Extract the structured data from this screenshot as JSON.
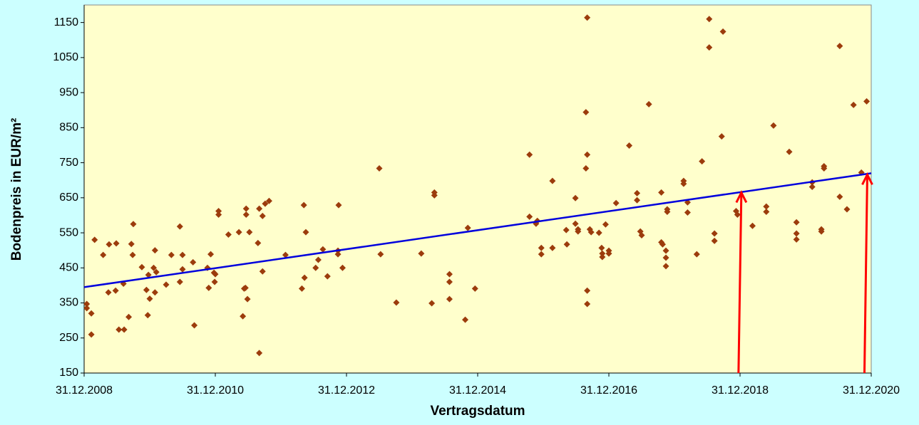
{
  "chart_data": {
    "type": "scatter",
    "x_label": "Vertragsdatum",
    "y_label": "Bodenpreis in EUR/m²",
    "xlim": [
      2009,
      2021
    ],
    "xticks": [
      {
        "value": 2009,
        "label": "31.12.2008"
      },
      {
        "value": 2011,
        "label": "31.12.2010"
      },
      {
        "value": 2013,
        "label": "31.12.2012"
      },
      {
        "value": 2015,
        "label": "31.12.2014"
      },
      {
        "value": 2017,
        "label": "31.12.2016"
      },
      {
        "value": 2019,
        "label": "31.12.2018"
      },
      {
        "value": 2021,
        "label": "31.12.2020"
      }
    ],
    "ylim": [
      150,
      1200
    ],
    "yticks": [
      150,
      250,
      350,
      450,
      550,
      650,
      750,
      850,
      950,
      1050,
      1150
    ],
    "series": [
      {
        "color": "#9c3c0c",
        "x": [
          2009.04,
          2009.04,
          2009.11,
          2009.11,
          2009.16,
          2009.29,
          2009.37,
          2009.38,
          2009.48,
          2009.49,
          2009.53,
          2009.61,
          2009.6,
          2009.68,
          2009.72,
          2009.75,
          2009.74,
          2009.88,
          2009.95,
          2009.97,
          2009.98,
          2010.0,
          2010.06,
          2010.08,
          2010.1,
          2010.08,
          2010.25,
          2010.33,
          2010.46,
          2010.46,
          2010.5,
          2010.5,
          2010.66,
          2010.68,
          2010.88,
          2010.9,
          2010.93,
          2010.98,
          2010.99,
          2011.0,
          2011.05,
          2011.05,
          2011.2,
          2011.36,
          2011.42,
          2011.44,
          2011.46,
          2011.47,
          2011.47,
          2011.49,
          2011.52,
          2011.65,
          2011.67,
          2011.67,
          2011.72,
          2011.72,
          2011.76,
          2011.82,
          2012.07,
          2012.32,
          2012.35,
          2012.36,
          2012.38,
          2012.53,
          2012.57,
          2012.64,
          2012.71,
          2012.87,
          2012.87,
          2012.88,
          2012.94,
          2013.5,
          2013.52,
          2013.76,
          2014.14,
          2014.3,
          2014.34,
          2014.34,
          2014.57,
          2014.57,
          2014.57,
          2014.81,
          2014.85,
          2014.96,
          2015.79,
          2015.79,
          2015.89,
          2015.91,
          2015.97,
          2015.97,
          2016.14,
          2016.14,
          2016.35,
          2016.36,
          2016.49,
          2016.49,
          2016.53,
          2016.53,
          2016.65,
          2016.65,
          2016.67,
          2016.67,
          2016.67,
          2016.67,
          2016.71,
          2016.73,
          2016.85,
          2016.89,
          2016.9,
          2016.9,
          2016.95,
          2017.0,
          2017.0,
          2017.11,
          2017.31,
          2017.43,
          2017.43,
          2017.48,
          2017.5,
          2017.61,
          2017.8,
          2017.8,
          2017.82,
          2017.87,
          2017.87,
          2017.87,
          2017.89,
          2017.89,
          2018.14,
          2018.14,
          2018.2,
          2018.2,
          2018.34,
          2018.42,
          2018.53,
          2018.53,
          2018.61,
          2018.61,
          2018.72,
          2018.74,
          2018.94,
          2018.96,
          2019.19,
          2019.4,
          2019.4,
          2019.51,
          2019.75,
          2019.86,
          2019.86,
          2019.86,
          2020.1,
          2020.1,
          2020.24,
          2020.24,
          2020.28,
          2020.28,
          2020.52,
          2020.52,
          2020.63,
          2020.73,
          2020.85,
          2020.93
        ],
        "values": [
          347,
          335,
          320,
          260,
          530,
          487,
          380,
          517,
          385,
          520,
          274,
          274,
          405,
          310,
          518,
          575,
          487,
          452,
          387,
          315,
          430,
          362,
          450,
          500,
          438,
          380,
          402,
          487,
          568,
          410,
          446,
          487,
          466,
          286,
          450,
          393,
          489,
          436,
          410,
          432,
          612,
          602,
          545,
          552,
          312,
          391,
          393,
          619,
          602,
          361,
          552,
          521,
          207,
          619,
          598,
          440,
          633,
          641,
          487,
          391,
          629,
          422,
          552,
          450,
          473,
          503,
          426,
          499,
          489,
          629,
          450,
          734,
          489,
          351,
          491,
          349,
          665,
          657,
          432,
          410,
          361,
          302,
          564,
          391,
          773,
          596,
          576,
          584,
          507,
          489,
          698,
          507,
          558,
          517,
          649,
          576,
          560,
          554,
          734,
          894,
          1164,
          773,
          385,
          347,
          560,
          552,
          550,
          507,
          491,
          481,
          574,
          499,
          491,
          635,
          799,
          663,
          643,
          554,
          543,
          917,
          665,
          523,
          517,
          499,
          479,
          455,
          617,
          610,
          698,
          690,
          637,
          608,
          489,
          754,
          1160,
          1079,
          548,
          527,
          825,
          1124,
          612,
          602,
          570,
          625,
          610,
          856,
          781,
          580,
          548,
          531,
          694,
          681,
          560,
          554,
          740,
          734,
          653,
          1083,
          617,
          915,
          722,
          925
        ]
      }
    ],
    "trendline": {
      "color": "#0000dd",
      "x": [
        2009,
        2021
      ],
      "values": [
        395,
        720
      ]
    },
    "arrows": {
      "color": "#ff0000",
      "x": [
        2019.02,
        2020.94
      ],
      "values": [
        665,
        716
      ]
    }
  }
}
